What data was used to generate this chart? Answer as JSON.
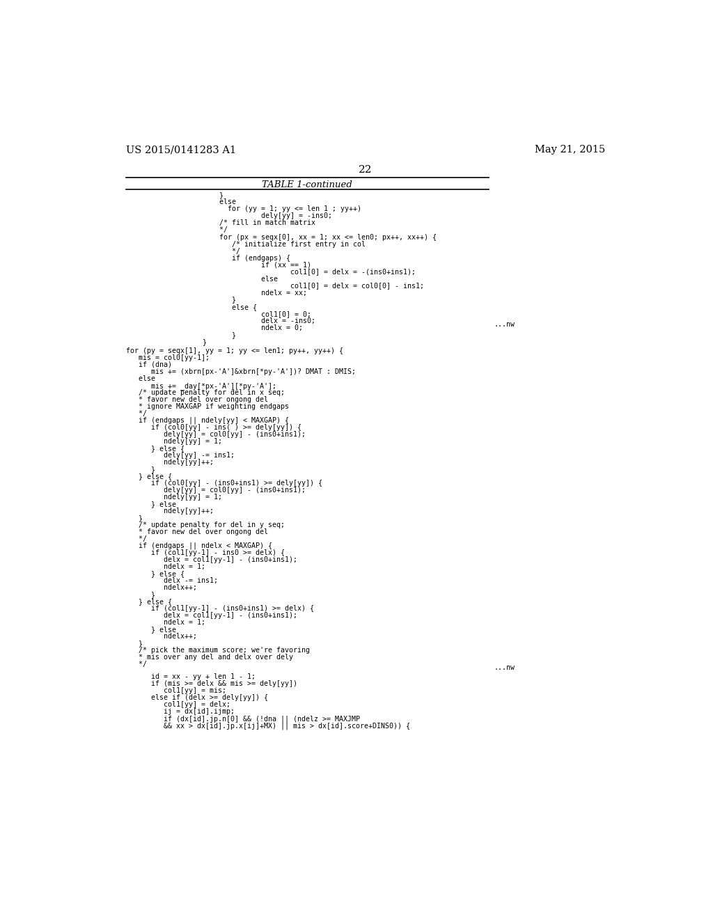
{
  "header_left": "US 2015/0141283 A1",
  "header_right": "May 21, 2015",
  "page_number": "22",
  "table_title": "TABLE 1-continued",
  "background_color": "#ffffff",
  "text_color": "#000000",
  "nw_marker": "...nw",
  "block1_lines": [
    "            }",
    "            else",
    "              for (yy = 1; yy <= len 1 ; yy++)",
    "                      dely[yy] = -ins0;",
    "            /* fill in match matrix",
    "            */",
    "            for (px = seqx[0], xx = 1; xx <= len0; px++, xx++) {",
    "               /* initialize first entry in col",
    "               */",
    "               if (endgaps) {",
    "                      if (xx == 1)",
    "                             col1[0] = delx = -(ins0+ins1);",
    "                      else",
    "                             col1[0] = delx = col0[0] - ins1;",
    "                      ndelx = xx;",
    "               }",
    "               else {",
    "                      col1[0] = 0;",
    "                      delx = -ins0;",
    "                      ndelx = 0;",
    "               }",
    "        }"
  ],
  "block2_lines": [
    "for (py = seqx[1], yy = 1; yy <= len1; py++, yy++) {",
    "   mis = col0[yy-1];",
    "   if (dna)",
    "      mis += (xbrn[px-'A']&xbrn[*py-'A'])? DMAT : DMIS;",
    "   else",
    "      mis += _day[*px-'A'][*py-'A'];",
    "   /* update penalty for del in x seq;",
    "   * favor new del over ongong del",
    "   * ignore MAXGAP if weighting endgaps",
    "   */",
    "   if (endgaps || ndely[yy] < MAXGAP) {",
    "      if (col0[yy] - ins( ) >= dely[yy]) {",
    "         dely[yy] = col0[yy] - (ins0+ins1);",
    "         ndely[yy] = 1;",
    "      } else {",
    "         dely[yy] -= ins1;",
    "         ndely[yy]++;",
    "      }",
    "   } else {",
    "      if (col0[yy] - (ins0+ins1) >= dely[yy]) {",
    "         dely[yy] = col0[yy] - (ins0+ins1);",
    "         ndely[yy] = 1;",
    "      } else",
    "         ndely[yy]++;",
    "   }",
    "   /* update penalty for del in y seq;",
    "   * favor new del over ongong del",
    "   */",
    "   if (endgaps || ndelx < MAXGAP) {",
    "      if (col1[yy-1] - ins0 >= delx) {",
    "         delx = col1[yy-1] - (ins0+ins1);",
    "         ndelx = 1;",
    "      } else {",
    "         delx -= ins1;",
    "         ndelx++;",
    "      }",
    "   } else {",
    "      if (col1[yy-1] - (ins0+ins1) >= delx) {",
    "         delx = col1[yy-1] - (ins0+ins1);",
    "         ndelx = 1;",
    "      } else",
    "         ndelx++;",
    "   }",
    "   /* pick the maximum score; we're favoring",
    "   * mis over any del and delx over dely",
    "   */"
  ],
  "block3_lines": [
    "      id = xx - yy + len 1 - 1;",
    "      if (mis >= delx && mis >= dely[yy])",
    "         col1[yy] = mis;",
    "      else if (delx >= dely[yy]) {",
    "         col1[yy] = delx;",
    "         ij = dx[id].ijmp;",
    "         if (dx[id].jp.n[0] && (!dna || (ndelz >= MAXJMP",
    "         && xx > dx[id].jp.x[ij]+MX) || mis > dx[id].score+DINS0)) {"
  ]
}
